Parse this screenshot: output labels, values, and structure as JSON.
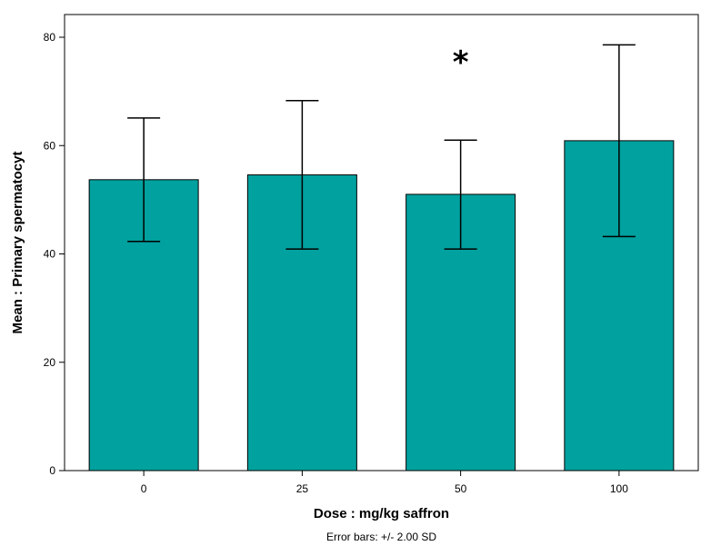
{
  "chart_data": {
    "type": "bar",
    "categories": [
      "0",
      "25",
      "50",
      "100"
    ],
    "values": [
      53.7,
      54.6,
      51.0,
      60.9
    ],
    "error_upper": [
      65.1,
      68.3,
      61.0,
      78.6
    ],
    "error_lower": [
      42.3,
      40.9,
      40.9,
      43.2
    ],
    "xlabel": "Dose : mg/kg saffron",
    "ylabel": "Mean : Primary spermatocyt",
    "ylim": [
      0,
      80
    ],
    "yticks": [
      "0",
      "20",
      "40",
      "60",
      "80"
    ],
    "footnote": "Error bars: +/-  2.00 SD",
    "bar_color": "#00A19E",
    "annotations": [
      {
        "category": "50",
        "text": "*"
      }
    ],
    "grid": false,
    "legend": "none"
  }
}
